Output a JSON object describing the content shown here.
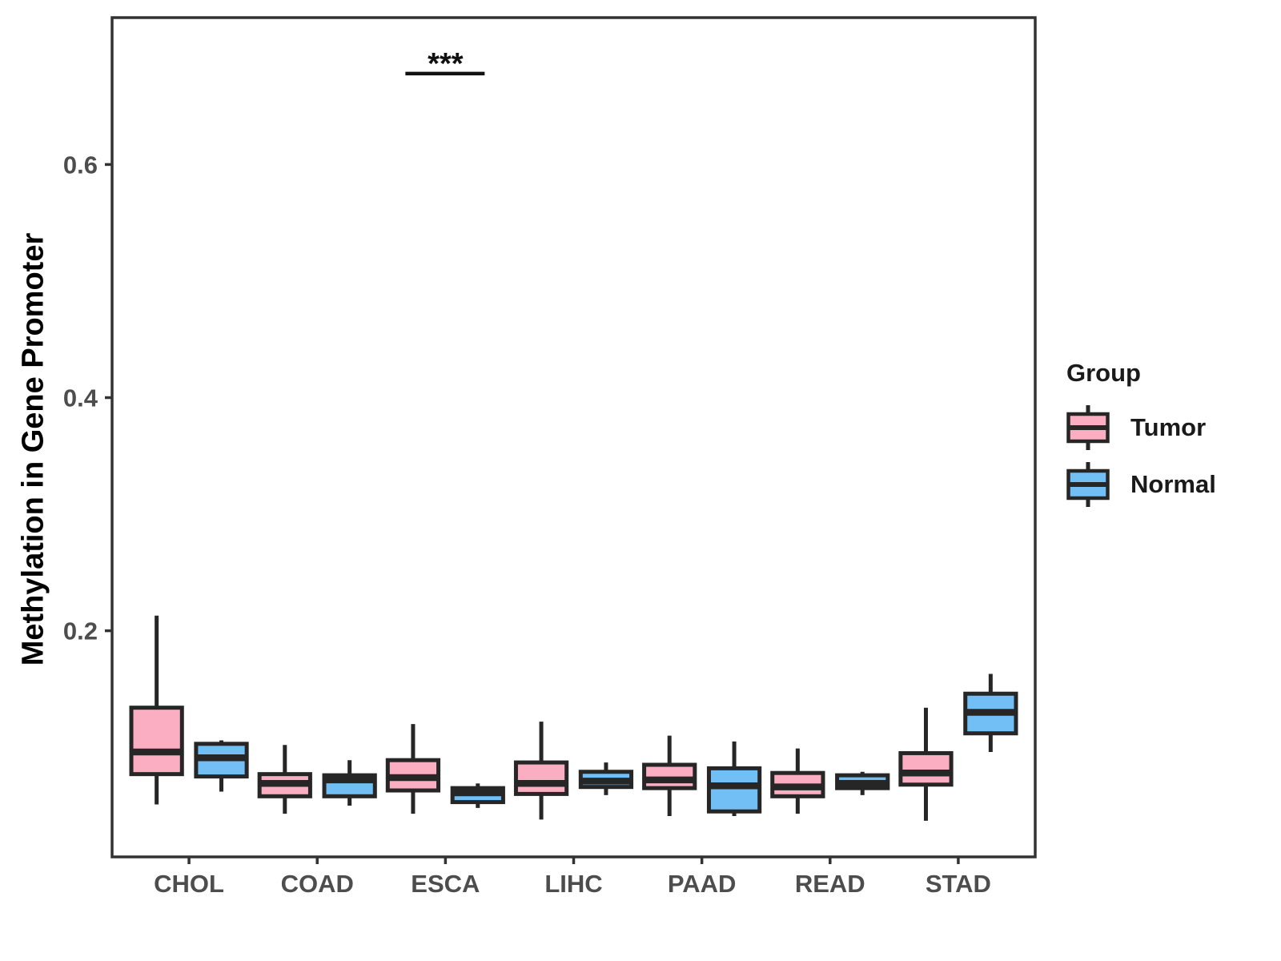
{
  "figure": {
    "ylabel": "Methylation in Gene Promoter"
  },
  "legend": {
    "title": "Group",
    "items": [
      {
        "label": "Tumor",
        "series": "Tumor"
      },
      {
        "label": "Normal",
        "series": "Normal"
      }
    ]
  },
  "chart_data": {
    "type": "boxplot",
    "title": "",
    "xlabel": "",
    "ylabel": "Methylation in Gene Promoter",
    "categories": [
      "CHOL",
      "COAD",
      "ESCA",
      "LIHC",
      "PAAD",
      "READ",
      "STAD"
    ],
    "y_ticks": [
      0.2,
      0.4,
      0.6
    ],
    "y_tick_labels": [
      "0.2",
      "0.4",
      "0.6"
    ],
    "ylim": [
      0.006,
      0.726
    ],
    "grid": false,
    "legend_position": "right",
    "box_format": [
      "whisker_min",
      "q1",
      "median",
      "q3",
      "whisker_max"
    ],
    "series": [
      {
        "name": "Tumor",
        "color": "#FBAEC1",
        "boxes": [
          [
            0.051,
            0.077,
            0.096,
            0.134,
            0.213
          ],
          [
            0.043,
            0.058,
            0.069,
            0.077,
            0.102
          ],
          [
            0.043,
            0.063,
            0.074,
            0.089,
            0.12
          ],
          [
            0.038,
            0.06,
            0.069,
            0.087,
            0.122
          ],
          [
            0.041,
            0.065,
            0.072,
            0.085,
            0.11
          ],
          [
            0.043,
            0.058,
            0.066,
            0.078,
            0.099
          ],
          [
            0.037,
            0.068,
            0.078,
            0.095,
            0.134
          ]
        ]
      },
      {
        "name": "Normal",
        "color": "#72BFF5",
        "boxes": [
          [
            0.062,
            0.075,
            0.091,
            0.103,
            0.106
          ],
          [
            0.05,
            0.058,
            0.072,
            0.076,
            0.089
          ],
          [
            0.048,
            0.053,
            0.061,
            0.065,
            0.069
          ],
          [
            0.059,
            0.066,
            0.071,
            0.079,
            0.087
          ],
          [
            0.041,
            0.045,
            0.067,
            0.082,
            0.105
          ],
          [
            0.059,
            0.065,
            0.069,
            0.076,
            0.079
          ],
          [
            0.096,
            0.112,
            0.13,
            0.146,
            0.163
          ]
        ]
      }
    ],
    "significance": [
      {
        "category": "ESCA",
        "label": "***",
        "y": 0.678
      }
    ],
    "colors": {
      "tumor_fill": "#FBAEC1",
      "normal_fill": "#72BFF5",
      "box_border": "#262626",
      "panel_border": "#333333",
      "axis_text": "#4d4d4d",
      "significance": "#111111"
    }
  }
}
